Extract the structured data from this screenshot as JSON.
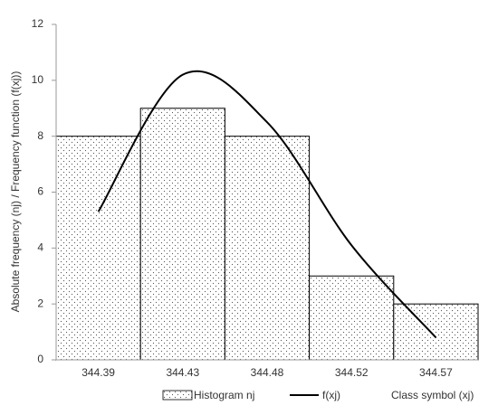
{
  "chart_data": {
    "type": "bar",
    "y_label": "Absolute frequency (nj) / Frequency function (f(xj))",
    "x_label": "Class symbol (xj)",
    "categories": [
      "344.39",
      "344.43",
      "344.48",
      "344.52",
      "344.57"
    ],
    "series": [
      {
        "name": "Histogram nj",
        "type": "bar",
        "color": "#000000",
        "values": [
          8,
          9,
          8,
          3,
          2
        ]
      },
      {
        "name": "f(xj)",
        "type": "line",
        "color": "#000000",
        "values": [
          5.3,
          10.2,
          8.5,
          4.1,
          0.8
        ]
      }
    ],
    "ylim": [
      0,
      12
    ],
    "yticks": [
      0,
      2,
      4,
      6,
      8,
      10,
      12
    ],
    "grid": false
  }
}
